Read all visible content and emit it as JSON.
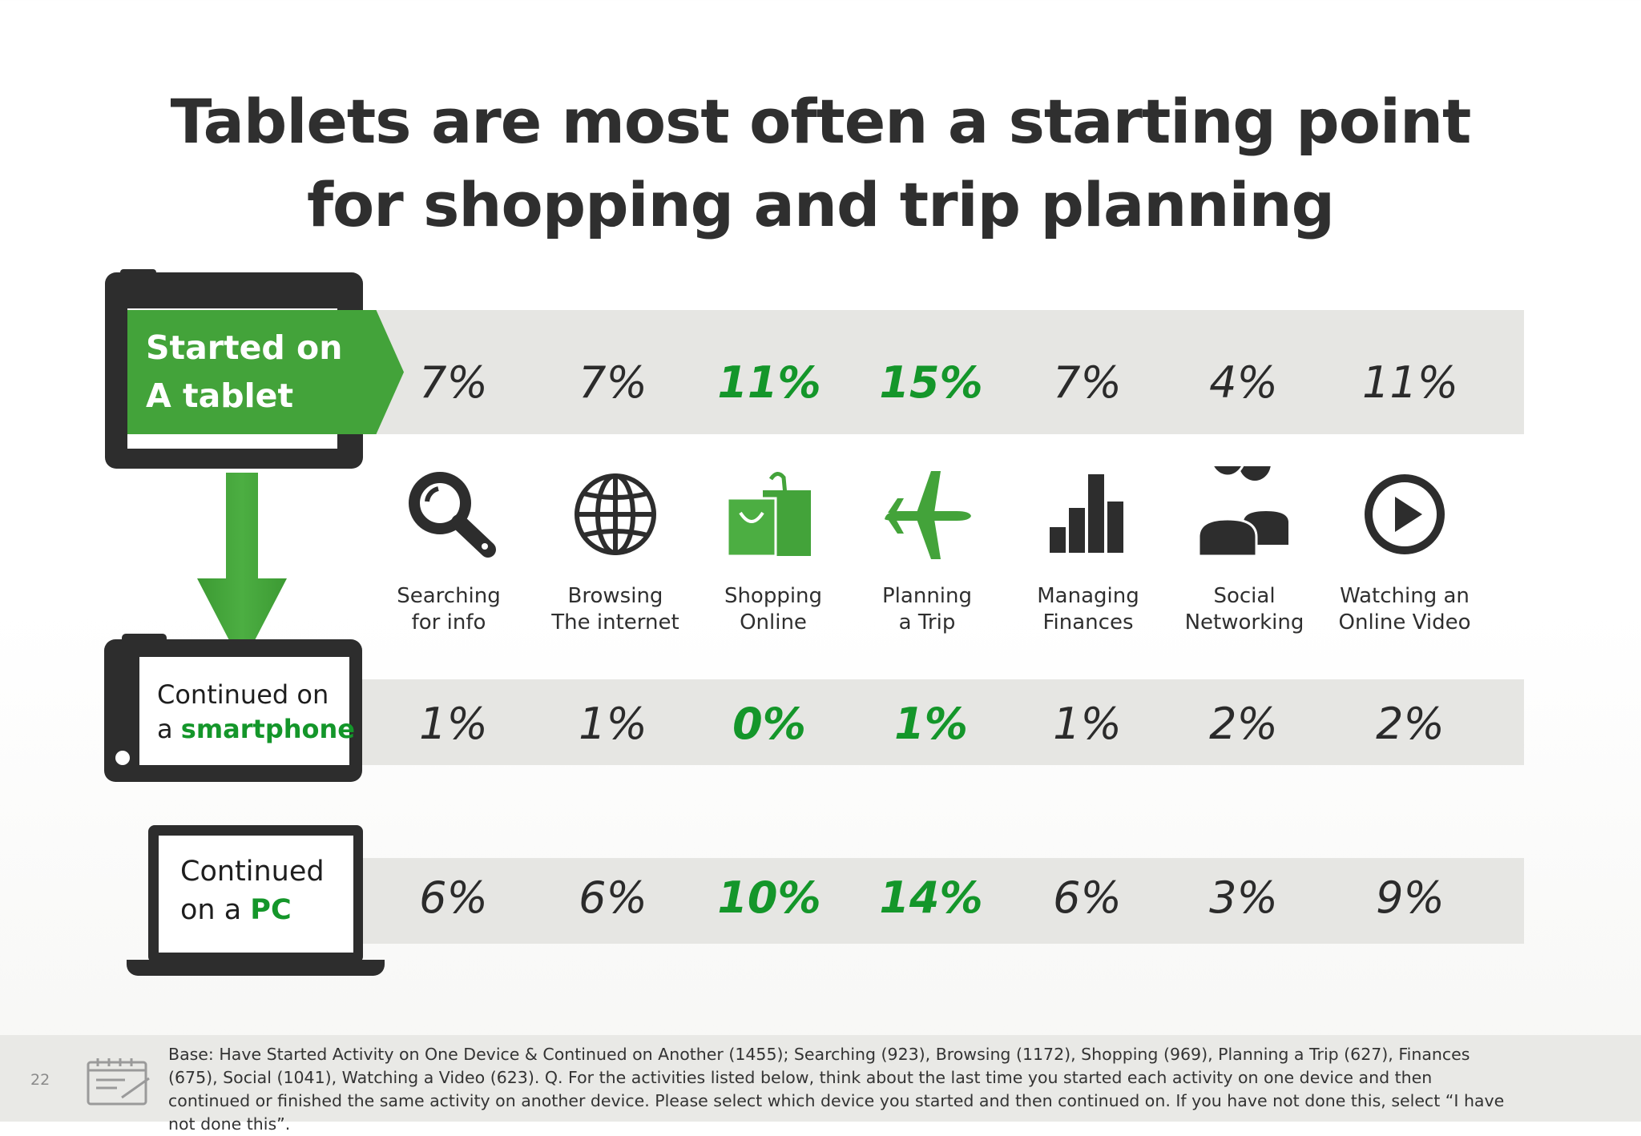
{
  "title": {
    "line1": "Tablets are most often a starting point",
    "line2": "for shopping and trip planning"
  },
  "rows": {
    "started": {
      "line1": "Started on",
      "line2": "A tablet"
    },
    "smartphone": {
      "line1": "Continued on",
      "prefix": "a ",
      "highlight": "smartphone"
    },
    "pc": {
      "line1": "Continued",
      "prefix": "on a ",
      "highlight": "PC"
    }
  },
  "activities": [
    {
      "line1": "Searching",
      "line2": "for info",
      "icon": "magnifier-icon"
    },
    {
      "line1": "Browsing",
      "line2": "The internet",
      "icon": "globe-icon"
    },
    {
      "line1": "Shopping",
      "line2": "Online",
      "icon": "shopping-bag-icon"
    },
    {
      "line1": "Planning",
      "line2": "a Trip",
      "icon": "airplane-icon"
    },
    {
      "line1": "Managing",
      "line2": "Finances",
      "icon": "bar-chart-icon"
    },
    {
      "line1": "Social",
      "line2": "Networking",
      "icon": "people-icon"
    },
    {
      "line1": "Watching an",
      "line2": "Online Video",
      "icon": "play-icon"
    }
  ],
  "colors": {
    "accent": "#43a33a",
    "highlight_text": "#14962a",
    "dark": "#2d2d2d",
    "band": "#e6e6e3"
  },
  "chart_data": {
    "type": "table",
    "categories": [
      "Searching for info",
      "Browsing The internet",
      "Shopping Online",
      "Planning a Trip",
      "Managing Finances",
      "Social Networking",
      "Watching an Online Video"
    ],
    "series": [
      {
        "name": "Started on A tablet",
        "values": [
          7,
          7,
          11,
          15,
          7,
          4,
          11
        ],
        "labels": [
          "7%",
          "7%",
          "11%",
          "15%",
          "7%",
          "4%",
          "11%"
        ]
      },
      {
        "name": "Continued on a smartphone",
        "values": [
          1,
          1,
          0,
          1,
          1,
          2,
          2
        ],
        "labels": [
          "1%",
          "1%",
          "0%",
          "1%",
          "1%",
          "2%",
          "2%"
        ]
      },
      {
        "name": "Continued on a PC",
        "values": [
          6,
          6,
          10,
          14,
          6,
          3,
          9
        ],
        "labels": [
          "6%",
          "6%",
          "10%",
          "14%",
          "6%",
          "3%",
          "9%"
        ]
      }
    ],
    "highlighted_categories": [
      "Shopping Online",
      "Planning a Trip"
    ]
  },
  "footer": {
    "page_number": "22",
    "note": "Base: Have Started Activity on One Device & Continued on Another (1455); Searching (923), Browsing (1172), Shopping (969), Planning a Trip (627), Finances (675), Social (1041), Watching a Video (623). Q. For the activities listed below, think about the last time you started each activity on one device and then continued or finished the same activity on another device.  Please select which device you started and then continued on.  If you have not done this, select “I have not done this”."
  }
}
